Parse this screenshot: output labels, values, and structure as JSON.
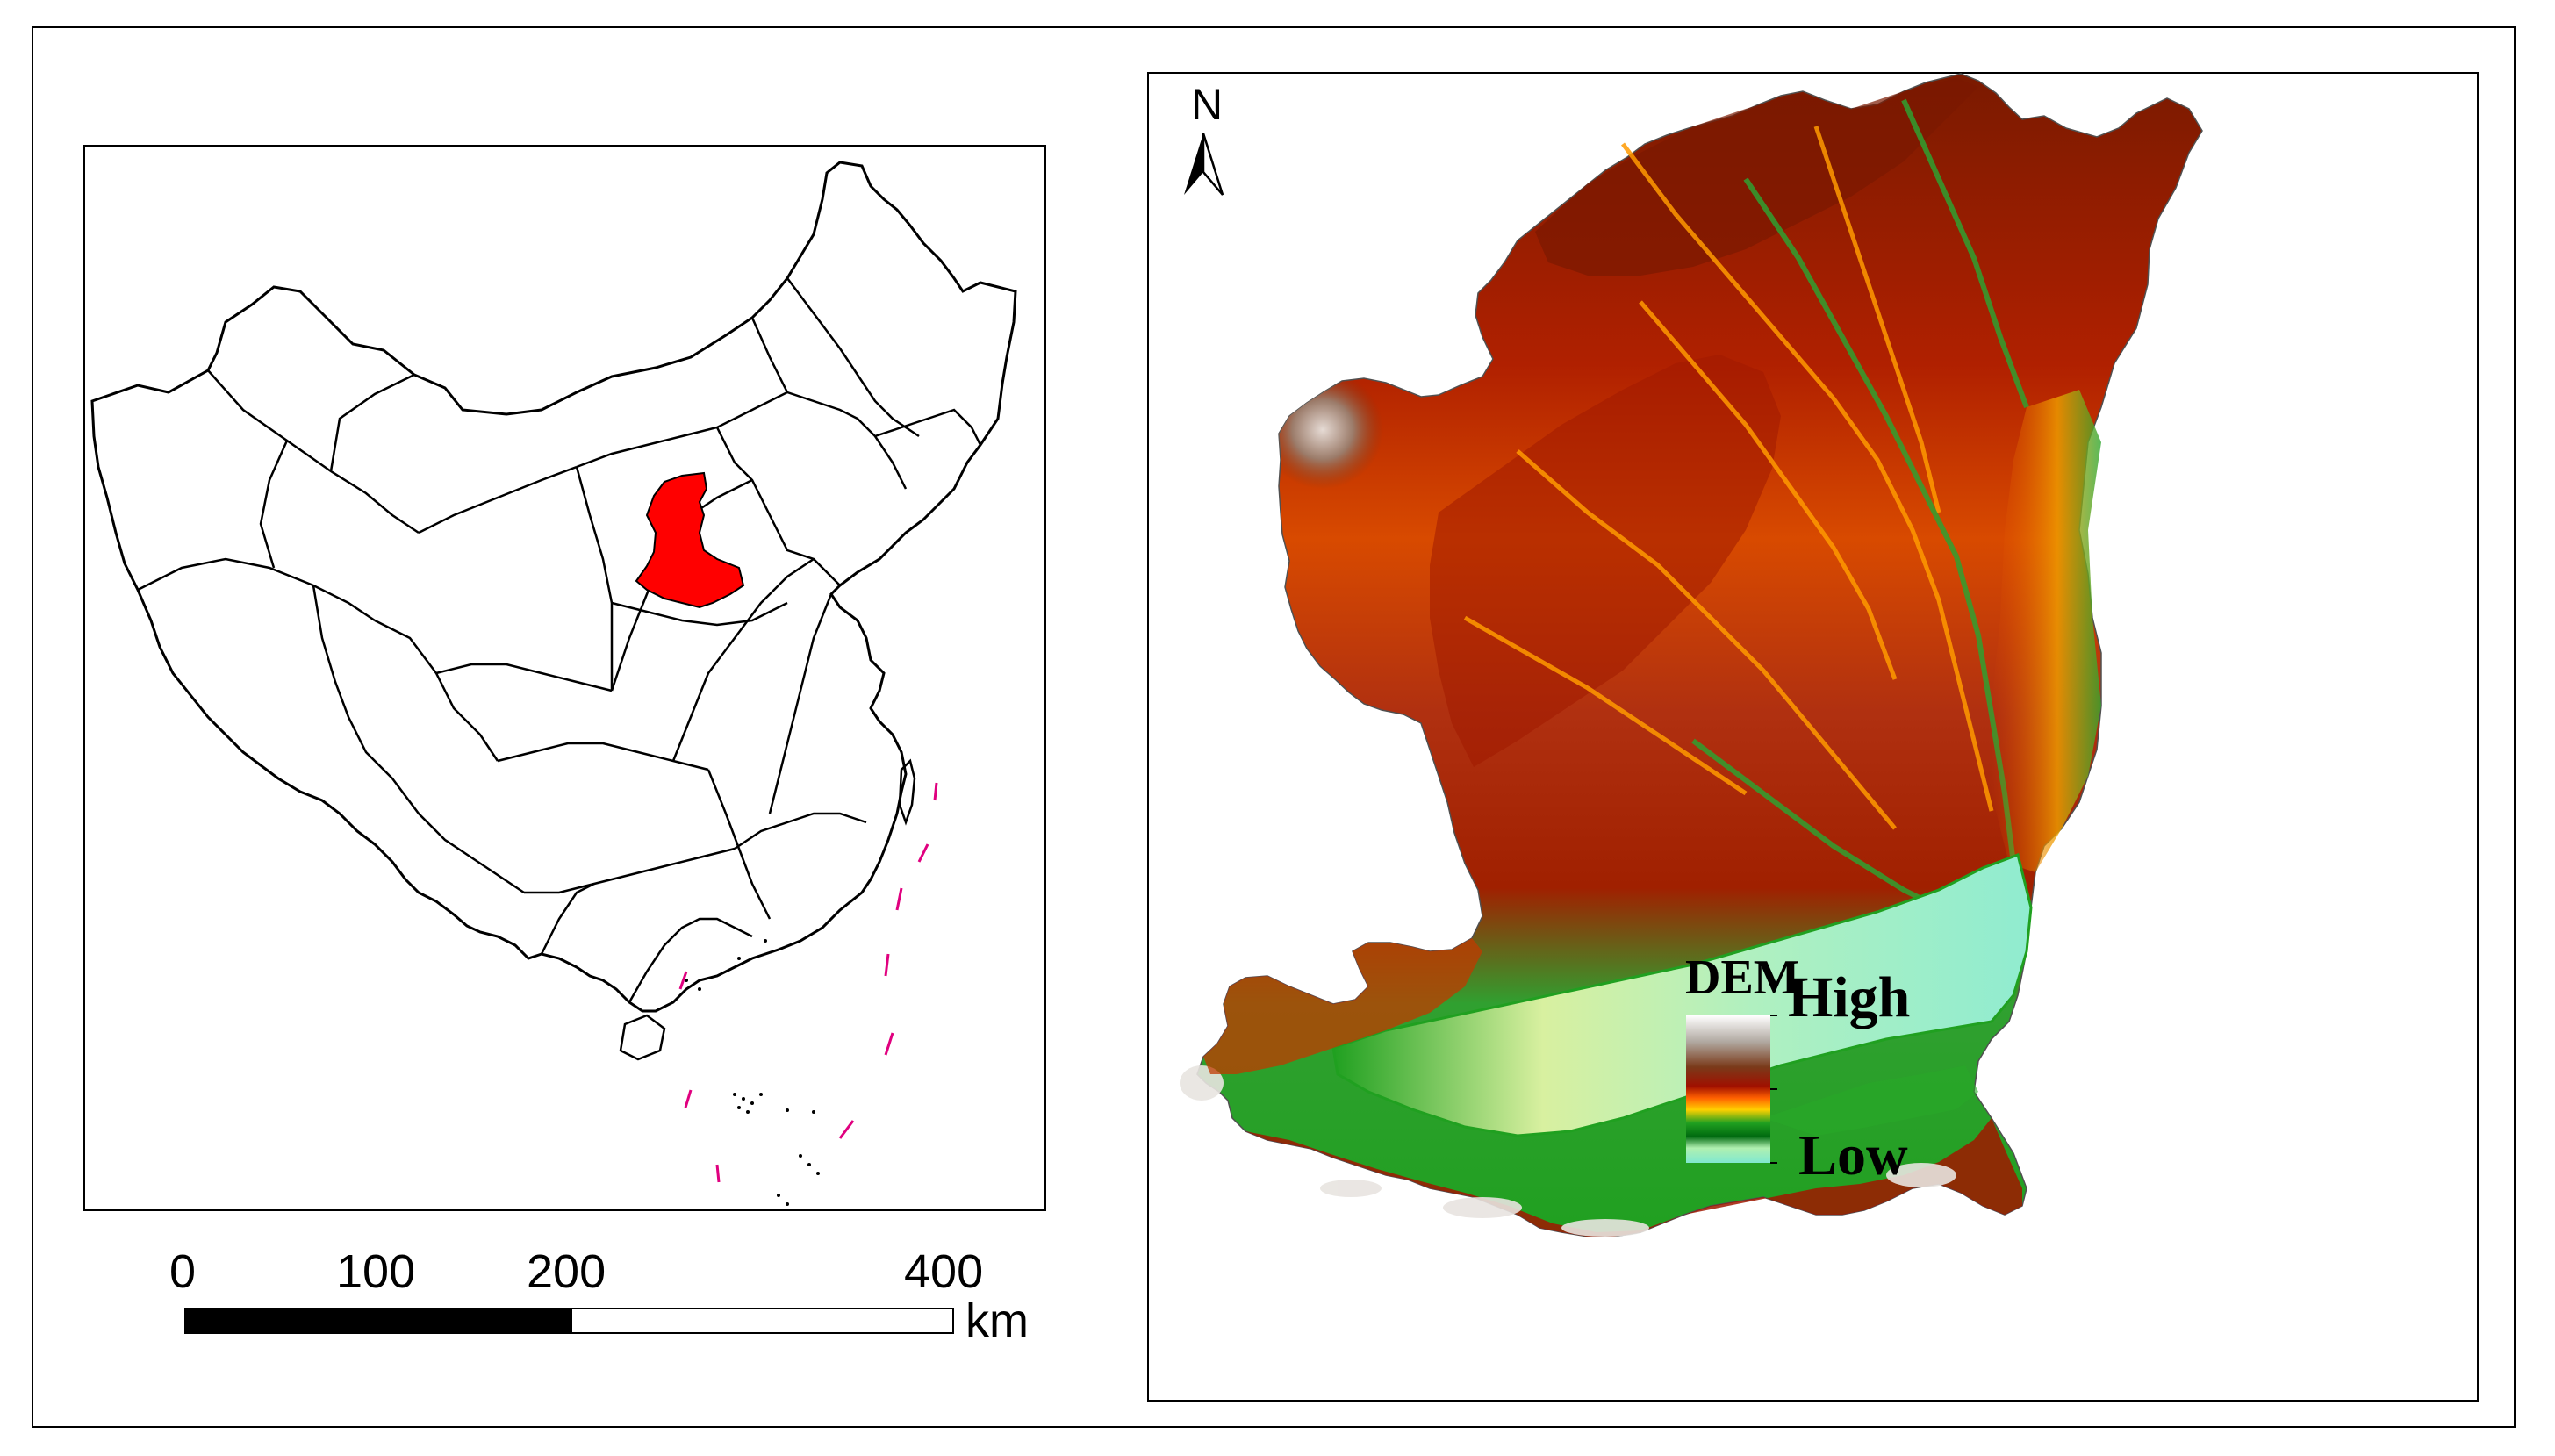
{
  "inset_map": {
    "highlight_color": "#ff0000",
    "outline_color": "#000000",
    "dashed_line_color": "#e0007f"
  },
  "scale_bar": {
    "ticks": [
      "0",
      "100",
      "200",
      "400"
    ],
    "unit": "km"
  },
  "north_arrow": {
    "letter": "N",
    "icon": "north-arrow-icon"
  },
  "legend": {
    "title": "DEM",
    "high_label": "High",
    "low_label": "Low",
    "ramp_colors": [
      "#ffffff",
      "#b0a8a0",
      "#7a3a1a",
      "#a01000",
      "#ff6000",
      "#ffd000",
      "#20a020",
      "#006a10",
      "#b0f0b0",
      "#80e8d0"
    ]
  },
  "dem_colors": {
    "highest": "#ffffff",
    "high": "#8a4a2a",
    "upper": "#a81800",
    "mid": "#e05000",
    "lower": "#f5c000",
    "low_green": "#28a828",
    "lowest": "#a8f0c8"
  }
}
